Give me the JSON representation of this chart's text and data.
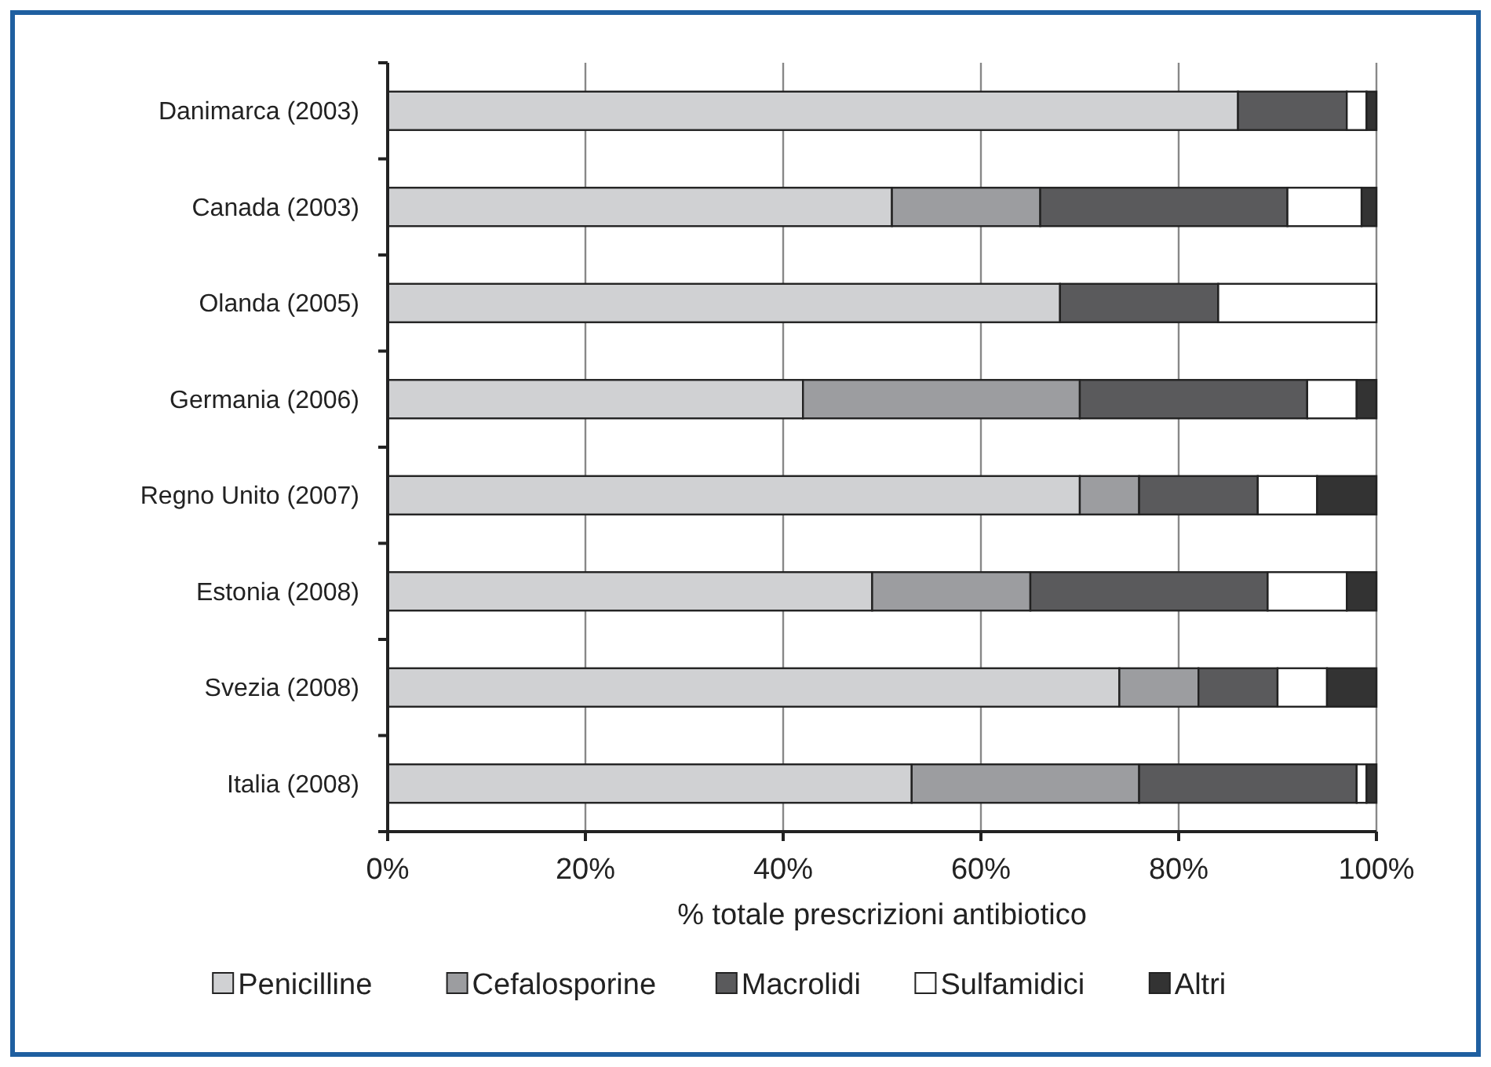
{
  "chart_data": {
    "type": "bar",
    "orientation": "horizontal",
    "stacked": true,
    "xlabel": "% totale prescrizioni antibiotico",
    "categories": [
      "Danimarca (2003)",
      "Canada (2003)",
      "Olanda (2005)",
      "Germania (2006)",
      "Regno Unito (2007)",
      "Estonia (2008)",
      "Svezia (2008)",
      "Italia (2008)"
    ],
    "series": [
      {
        "name": "Penicilline",
        "color": "#d0d1d3",
        "values": [
          86,
          51,
          68,
          42,
          70,
          49,
          74,
          53
        ]
      },
      {
        "name": "Cefalosporine",
        "color": "#9c9da0",
        "values": [
          0,
          15,
          0,
          28,
          6,
          16,
          8,
          23
        ]
      },
      {
        "name": "Macrolidi",
        "color": "#5a5a5c",
        "values": [
          11,
          25,
          16,
          23,
          12,
          24,
          8,
          22
        ]
      },
      {
        "name": "Sulfamidici",
        "color": "#ffffff",
        "values": [
          2,
          7.5,
          16,
          5,
          6,
          8,
          5,
          1
        ]
      },
      {
        "name": "Altri",
        "color": "#333333",
        "values": [
          1,
          1.5,
          0,
          2,
          6,
          3,
          5,
          1
        ]
      }
    ],
    "xlim": [
      0,
      100
    ],
    "xticks": [
      {
        "value": 0,
        "label": "0%"
      },
      {
        "value": 20,
        "label": "20%"
      },
      {
        "value": 40,
        "label": "40%"
      },
      {
        "value": 60,
        "label": "60%"
      },
      {
        "value": 80,
        "label": "80%"
      },
      {
        "value": 100,
        "label": "100%"
      }
    ],
    "grid": "x",
    "legend": "bottom"
  }
}
